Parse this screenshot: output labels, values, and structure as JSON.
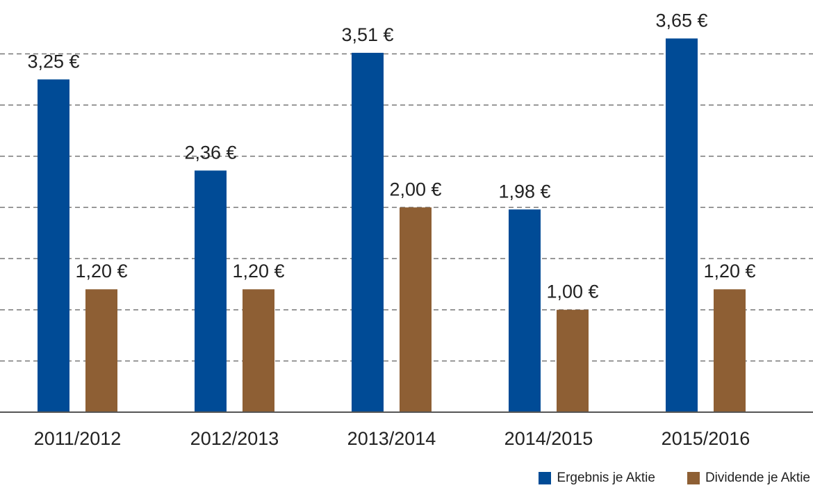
{
  "chart_data": {
    "type": "bar",
    "categories": [
      "2011/2012",
      "2012/2013",
      "2013/2014",
      "2014/2015",
      "2015/2016"
    ],
    "series": [
      {
        "name": "Ergebnis je Aktie",
        "values": [
          3.25,
          2.36,
          3.51,
          1.98,
          3.65
        ],
        "labels": [
          "3,25 €",
          "2,36 €",
          "3,51 €",
          "1,98 €",
          "3,65 €"
        ],
        "color": "#004b96"
      },
      {
        "name": "Dividende je Aktie",
        "values": [
          1.2,
          1.2,
          2.0,
          1.0,
          1.2
        ],
        "labels": [
          "1,20 €",
          "1,20 €",
          "2,00 €",
          "1,00 €",
          "1,20 €"
        ],
        "color": "#8e5f34"
      }
    ],
    "ylim": [
      0,
      3.5
    ],
    "grid": true,
    "grid_style": "dashed",
    "legend_position": "bottom-right",
    "title": "",
    "xlabel": "",
    "ylabel": ""
  },
  "legend": {
    "items": [
      {
        "label": "Ergebnis je Aktie",
        "color": "#004b96"
      },
      {
        "label": "Dividende je Aktie",
        "color": "#8e5f34"
      }
    ]
  }
}
